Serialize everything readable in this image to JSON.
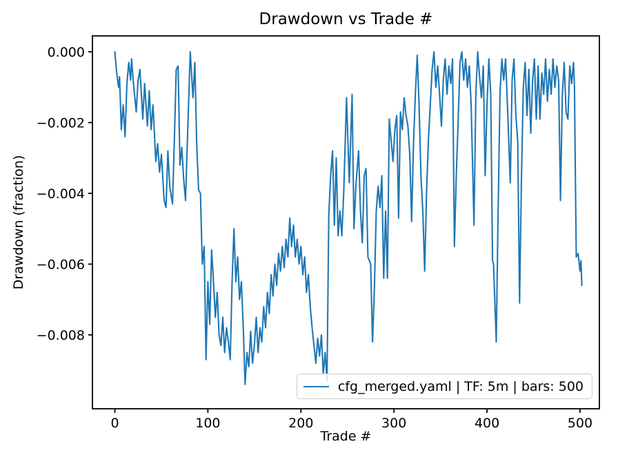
{
  "figure": {
    "title": "Drawdown vs Trade #",
    "xlabel": "Trade #",
    "ylabel": "Drawdown (fraction)",
    "background_color": "#ffffff",
    "spine_color": "#000000"
  },
  "chart_data": {
    "type": "line",
    "title": "Drawdown vs Trade #",
    "xlabel": "Trade #",
    "ylabel": "Drawdown (fraction)",
    "grid": false,
    "legend_position": "lower right",
    "legend_label": "cfg_merged.yaml | TF: 5m | bars: 500",
    "line_color": "#1f77b4",
    "xlim": [
      -24.1,
      520.8
    ],
    "ylim": [
      -0.010088,
      0.000449
    ],
    "x_ticks": [
      0,
      100,
      200,
      300,
      400,
      500
    ],
    "x_tick_labels": [
      "0",
      "100",
      "200",
      "300",
      "400",
      "500"
    ],
    "y_ticks": [
      0,
      -0.002,
      -0.004,
      -0.006,
      -0.008
    ],
    "y_tick_labels": [
      "0.000",
      "−0.002",
      "−0.004",
      "−0.006",
      "−0.008"
    ],
    "series": [
      {
        "name": "cfg_merged.yaml | TF: 5m | bars: 500",
        "color": "#1f77b4",
        "points": [
          [
            0,
            0
          ],
          [
            2,
            -0.0006
          ],
          [
            4,
            -0.001
          ],
          [
            5,
            -0.0007
          ],
          [
            7,
            -0.0022
          ],
          [
            9,
            -0.0015
          ],
          [
            11,
            -0.0024
          ],
          [
            13,
            -0.0009
          ],
          [
            15,
            -0.0003
          ],
          [
            17,
            -0.0008
          ],
          [
            18,
            -0.0002
          ],
          [
            20,
            -0.0009
          ],
          [
            23,
            -0.0017
          ],
          [
            25,
            -0.0008
          ],
          [
            27,
            -0.0005
          ],
          [
            30,
            -0.0019
          ],
          [
            32,
            -0.0009
          ],
          [
            35,
            -0.0021
          ],
          [
            37,
            -0.0011
          ],
          [
            39,
            -0.0022
          ],
          [
            41,
            -0.0015
          ],
          [
            44,
            -0.0031
          ],
          [
            46,
            -0.0026
          ],
          [
            48,
            -0.0034
          ],
          [
            50,
            -0.0029
          ],
          [
            53,
            -0.0042
          ],
          [
            55,
            -0.0044
          ],
          [
            57,
            -0.0028
          ],
          [
            59,
            -0.0038
          ],
          [
            62,
            -0.0043
          ],
          [
            64,
            -0.0025
          ],
          [
            66,
            -0.0005
          ],
          [
            68,
            -0.0004
          ],
          [
            70,
            -0.0032
          ],
          [
            72,
            -0.0027
          ],
          [
            74,
            -0.0036
          ],
          [
            76,
            -0.0042
          ],
          [
            78,
            -0.0025
          ],
          [
            81,
            0
          ],
          [
            84,
            -0.0013
          ],
          [
            86,
            -0.0003
          ],
          [
            88,
            -0.0026
          ],
          [
            90,
            -0.0039
          ],
          [
            92,
            -0.004
          ],
          [
            94,
            -0.006
          ],
          [
            96,
            -0.0055
          ],
          [
            98,
            -0.0087
          ],
          [
            100,
            -0.0065
          ],
          [
            102,
            -0.0077
          ],
          [
            104,
            -0.0056
          ],
          [
            106,
            -0.0065
          ],
          [
            108,
            -0.0075
          ],
          [
            110,
            -0.0068
          ],
          [
            112,
            -0.008
          ],
          [
            114,
            -0.0083
          ],
          [
            116,
            -0.0075
          ],
          [
            118,
            -0.0085
          ],
          [
            120,
            -0.0078
          ],
          [
            122,
            -0.0082
          ],
          [
            124,
            -0.0087
          ],
          [
            126,
            -0.0065
          ],
          [
            128,
            -0.005
          ],
          [
            130,
            -0.0065
          ],
          [
            132,
            -0.0058
          ],
          [
            134,
            -0.007
          ],
          [
            136,
            -0.0065
          ],
          [
            138,
            -0.0078
          ],
          [
            140,
            -0.0094
          ],
          [
            142,
            -0.0085
          ],
          [
            144,
            -0.0089
          ],
          [
            146,
            -0.0079
          ],
          [
            148,
            -0.0088
          ],
          [
            150,
            -0.0083
          ],
          [
            152,
            -0.0075
          ],
          [
            154,
            -0.0085
          ],
          [
            156,
            -0.0078
          ],
          [
            158,
            -0.0082
          ],
          [
            160,
            -0.0072
          ],
          [
            162,
            -0.0078
          ],
          [
            164,
            -0.0068
          ],
          [
            166,
            -0.0074
          ],
          [
            168,
            -0.0063
          ],
          [
            170,
            -0.0069
          ],
          [
            172,
            -0.006
          ],
          [
            174,
            -0.0066
          ],
          [
            176,
            -0.0057
          ],
          [
            178,
            -0.0062
          ],
          [
            180,
            -0.0055
          ],
          [
            182,
            -0.0061
          ],
          [
            184,
            -0.0053
          ],
          [
            186,
            -0.0058
          ],
          [
            188,
            -0.0047
          ],
          [
            190,
            -0.0055
          ],
          [
            192,
            -0.0049
          ],
          [
            194,
            -0.0058
          ],
          [
            196,
            -0.0053
          ],
          [
            198,
            -0.006
          ],
          [
            200,
            -0.0055
          ],
          [
            202,
            -0.0063
          ],
          [
            204,
            -0.0058
          ],
          [
            206,
            -0.0068
          ],
          [
            208,
            -0.0063
          ],
          [
            210,
            -0.0072
          ],
          [
            212,
            -0.0078
          ],
          [
            214,
            -0.0083
          ],
          [
            216,
            -0.0088
          ],
          [
            218,
            -0.0081
          ],
          [
            220,
            -0.0086
          ],
          [
            222,
            -0.008
          ],
          [
            224,
            -0.0091
          ],
          [
            226,
            -0.0085
          ],
          [
            228,
            -0.0093
          ],
          [
            230,
            -0.0046
          ],
          [
            232,
            -0.0035
          ],
          [
            234,
            -0.0028
          ],
          [
            236,
            -0.0049
          ],
          [
            238,
            -0.003
          ],
          [
            240,
            -0.0052
          ],
          [
            242,
            -0.0045
          ],
          [
            244,
            -0.0052
          ],
          [
            246,
            -0.004
          ],
          [
            249,
            -0.0013
          ],
          [
            252,
            -0.0037
          ],
          [
            255,
            -0.0012
          ],
          [
            257,
            -0.005
          ],
          [
            259,
            -0.0038
          ],
          [
            262,
            -0.0028
          ],
          [
            264,
            -0.0045
          ],
          [
            266,
            -0.0054
          ],
          [
            268,
            -0.0035
          ],
          [
            270,
            -0.0033
          ],
          [
            272,
            -0.0058
          ],
          [
            275,
            -0.006
          ],
          [
            277,
            -0.0082
          ],
          [
            279,
            -0.0067
          ],
          [
            281,
            -0.0045
          ],
          [
            283,
            -0.0038
          ],
          [
            285,
            -0.0044
          ],
          [
            287,
            -0.0035
          ],
          [
            289,
            -0.0064
          ],
          [
            291,
            -0.0045
          ],
          [
            293,
            -0.0064
          ],
          [
            295,
            -0.0019
          ],
          [
            297,
            -0.0025
          ],
          [
            299,
            -0.0031
          ],
          [
            301,
            -0.0022
          ],
          [
            303,
            -0.0018
          ],
          [
            305,
            -0.0047
          ],
          [
            307,
            -0.0017
          ],
          [
            309,
            -0.0022
          ],
          [
            311,
            -0.0013
          ],
          [
            313,
            -0.0018
          ],
          [
            315,
            -0.0021
          ],
          [
            317,
            -0.0029
          ],
          [
            319,
            -0.0048
          ],
          [
            321,
            -0.0026
          ],
          [
            323,
            -0.0012
          ],
          [
            325,
            -0.0001
          ],
          [
            327,
            -0.0015
          ],
          [
            329,
            -0.0035
          ],
          [
            331,
            -0.0045
          ],
          [
            333,
            -0.0062
          ],
          [
            335,
            -0.004
          ],
          [
            337,
            -0.0025
          ],
          [
            339,
            -0.0015
          ],
          [
            341,
            -0.0005
          ],
          [
            343,
            0
          ],
          [
            345,
            -0.001
          ],
          [
            347,
            -0.0004
          ],
          [
            349,
            -0.0012
          ],
          [
            351,
            -0.0021
          ],
          [
            353,
            -0.0008
          ],
          [
            355,
            -0.0002
          ],
          [
            357,
            -0.0012
          ],
          [
            359,
            -0.0004
          ],
          [
            361,
            -0.0009
          ],
          [
            363,
            -0.0002
          ],
          [
            365,
            -0.0055
          ],
          [
            367,
            -0.0035
          ],
          [
            369,
            -0.002
          ],
          [
            371,
            -0.0003
          ],
          [
            373,
            0
          ],
          [
            375,
            -0.0008
          ],
          [
            377,
            -0.0002
          ],
          [
            379,
            -0.001
          ],
          [
            381,
            -0.0004
          ],
          [
            383,
            -0.0015
          ],
          [
            386,
            -0.0049
          ],
          [
            388,
            -0.0012
          ],
          [
            390,
            0
          ],
          [
            392,
            -0.0007
          ],
          [
            394,
            -0.0013
          ],
          [
            396,
            -0.0004
          ],
          [
            398,
            -0.0035
          ],
          [
            400,
            -0.0015
          ],
          [
            402,
            -0.0002
          ],
          [
            404,
            -0.0012
          ],
          [
            406,
            -0.0059
          ],
          [
            407,
            -0.006
          ],
          [
            408,
            -0.0067
          ],
          [
            410,
            -0.0082
          ],
          [
            412,
            -0.0045
          ],
          [
            414,
            -0.0012
          ],
          [
            416,
            -0.0002
          ],
          [
            418,
            -0.0008
          ],
          [
            420,
            -0.0002
          ],
          [
            422,
            -0.0015
          ],
          [
            425,
            -0.0037
          ],
          [
            427,
            -0.0008
          ],
          [
            429,
            -0.0002
          ],
          [
            431,
            -0.0018
          ],
          [
            433,
            -0.0025
          ],
          [
            435,
            -0.0071
          ],
          [
            437,
            -0.0036
          ],
          [
            439,
            -0.001
          ],
          [
            441,
            -0.0003
          ],
          [
            443,
            -0.0018
          ],
          [
            445,
            -0.0005
          ],
          [
            447,
            -0.0023
          ],
          [
            449,
            -0.0008
          ],
          [
            451,
            -0.0002
          ],
          [
            453,
            -0.0019
          ],
          [
            455,
            -0.0004
          ],
          [
            457,
            -0.0019
          ],
          [
            459,
            -0.0006
          ],
          [
            461,
            -0.0012
          ],
          [
            463,
            -0.0002
          ],
          [
            465,
            -0.0014
          ],
          [
            467,
            -0.0005
          ],
          [
            469,
            -0.0012
          ],
          [
            471,
            -0.0002
          ],
          [
            473,
            -0.001
          ],
          [
            475,
            -0.0004
          ],
          [
            477,
            -0.0008
          ],
          [
            479,
            -0.0042
          ],
          [
            481,
            -0.0012
          ],
          [
            483,
            -0.0003
          ],
          [
            485,
            -0.0017
          ],
          [
            487,
            -0.0019
          ],
          [
            489,
            -0.0004
          ],
          [
            491,
            -0.0009
          ],
          [
            493,
            -0.0003
          ],
          [
            494,
            -0.001
          ],
          [
            495,
            -0.0035
          ],
          [
            496,
            -0.0058
          ],
          [
            498,
            -0.0057
          ],
          [
            500,
            -0.0062
          ],
          [
            501,
            -0.0059
          ],
          [
            502,
            -0.0066
          ]
        ]
      }
    ]
  }
}
